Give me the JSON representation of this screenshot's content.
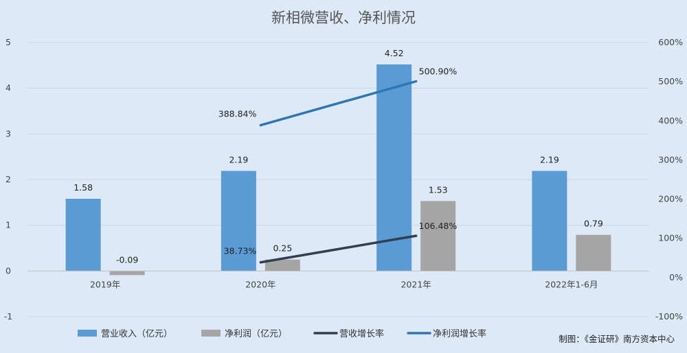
{
  "chart_data": {
    "type": "bar",
    "title": "新相微营收、净利情况",
    "categories": [
      "2019年",
      "2020年",
      "2021年",
      "2022年1-6月"
    ],
    "series": [
      {
        "name": "营业收入（亿元）",
        "kind": "bar",
        "axis": "left",
        "color": "#5b9bd5",
        "values": [
          1.58,
          2.19,
          4.52,
          2.19
        ],
        "labels": [
          "1.58",
          "2.19",
          "4.52",
          "2.19"
        ]
      },
      {
        "name": "净利润（亿元）",
        "kind": "bar",
        "axis": "left",
        "color": "#a5a5a5",
        "values": [
          -0.09,
          0.25,
          1.53,
          0.79
        ],
        "labels": [
          "-0.09",
          "0.25",
          "1.53",
          "0.79"
        ]
      },
      {
        "name": "营收增长率",
        "kind": "line",
        "axis": "right",
        "color": "#333f50",
        "values": [
          null,
          38.73,
          106.48,
          null
        ],
        "labels": [
          null,
          "38.73%",
          "106.48%",
          null
        ]
      },
      {
        "name": "净利润增长率",
        "kind": "line",
        "axis": "right",
        "color": "#2e75b6",
        "values": [
          null,
          388.84,
          500.9,
          null
        ],
        "labels": [
          null,
          "388.84%",
          "500.90%",
          null
        ]
      }
    ],
    "y_left": {
      "min": -1,
      "max": 5,
      "ticks": [
        "5",
        "4",
        "3",
        "2",
        "1",
        "0",
        "-1"
      ]
    },
    "y_right": {
      "min": -100,
      "max": 600,
      "ticks": [
        "600%",
        "500%",
        "400%",
        "300%",
        "200%",
        "100%",
        "0%",
        "-100%"
      ]
    },
    "grid": true,
    "legend": "bottom"
  },
  "credit": "制图：《金证研》南方资本中心"
}
